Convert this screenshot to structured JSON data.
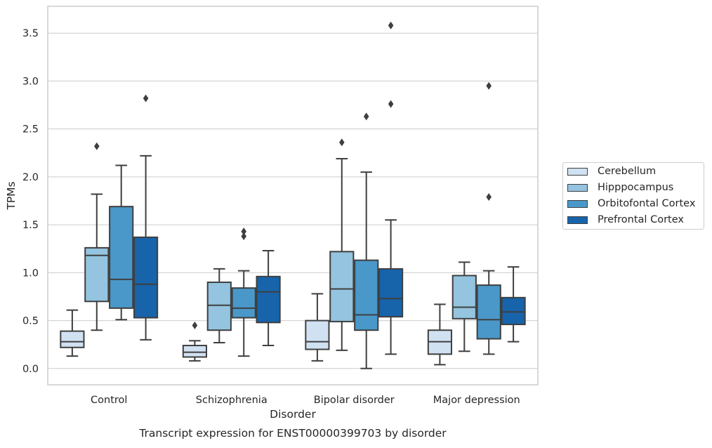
{
  "caption": "Transcript expression for ENST00000399703 by disorder",
  "chart_data": {
    "type": "box",
    "title": "",
    "xlabel": "Disorder",
    "ylabel": "TPMs",
    "ylim": [
      -0.17,
      3.78
    ],
    "yticks": [
      "0.0",
      "0.5",
      "1.0",
      "1.5",
      "2.0",
      "2.5",
      "3.0",
      "3.5"
    ],
    "ytick_values": [
      0.0,
      0.5,
      1.0,
      1.5,
      2.0,
      2.5,
      3.0,
      3.5
    ],
    "grid": "horizontal",
    "legend_position": "right",
    "categories": [
      "Control",
      "Schizophrenia",
      "Bipolar disorder",
      "Major depression"
    ],
    "series": [
      {
        "name": "Cerebellum",
        "color": "#d0e1f2",
        "boxes": [
          {
            "whislo": 0.13,
            "q1": 0.22,
            "med": 0.28,
            "q3": 0.39,
            "whishi": 0.61,
            "fliers": []
          },
          {
            "whislo": 0.08,
            "q1": 0.12,
            "med": 0.17,
            "q3": 0.24,
            "whishi": 0.29,
            "fliers": [
              0.45
            ]
          },
          {
            "whislo": 0.08,
            "q1": 0.2,
            "med": 0.28,
            "q3": 0.5,
            "whishi": 0.78,
            "fliers": []
          },
          {
            "whislo": 0.04,
            "q1": 0.15,
            "med": 0.28,
            "q3": 0.4,
            "whishi": 0.67,
            "fliers": []
          }
        ]
      },
      {
        "name": "Hipppocampus",
        "color": "#94c4df",
        "boxes": [
          {
            "whislo": 0.4,
            "q1": 0.7,
            "med": 1.18,
            "q3": 1.26,
            "whishi": 1.82,
            "fliers": [
              2.32
            ]
          },
          {
            "whislo": 0.27,
            "q1": 0.4,
            "med": 0.66,
            "q3": 0.9,
            "whishi": 1.04,
            "fliers": []
          },
          {
            "whislo": 0.19,
            "q1": 0.49,
            "med": 0.83,
            "q3": 1.22,
            "whishi": 2.19,
            "fliers": [
              2.36
            ]
          },
          {
            "whislo": 0.18,
            "q1": 0.52,
            "med": 0.64,
            "q3": 0.97,
            "whishi": 1.11,
            "fliers": []
          }
        ]
      },
      {
        "name": "Orbitofontal Cortex",
        "color": "#4a98c9",
        "boxes": [
          {
            "whislo": 0.51,
            "q1": 0.63,
            "med": 0.93,
            "q3": 1.69,
            "whishi": 2.12,
            "fliers": []
          },
          {
            "whislo": 0.13,
            "q1": 0.53,
            "med": 0.63,
            "q3": 0.84,
            "whishi": 1.02,
            "fliers": [
              1.38,
              1.43
            ]
          },
          {
            "whislo": 0.0,
            "q1": 0.4,
            "med": 0.56,
            "q3": 1.13,
            "whishi": 2.05,
            "fliers": [
              2.63
            ]
          },
          {
            "whislo": 0.15,
            "q1": 0.31,
            "med": 0.51,
            "q3": 0.87,
            "whishi": 1.02,
            "fliers": [
              1.79,
              2.95
            ]
          }
        ]
      },
      {
        "name": "Prefrontal Cortex",
        "color": "#1764ab",
        "boxes": [
          {
            "whislo": 0.3,
            "q1": 0.53,
            "med": 0.88,
            "q3": 1.37,
            "whishi": 2.22,
            "fliers": [
              2.82
            ]
          },
          {
            "whislo": 0.24,
            "q1": 0.48,
            "med": 0.8,
            "q3": 0.96,
            "whishi": 1.23,
            "fliers": []
          },
          {
            "whislo": 0.15,
            "q1": 0.54,
            "med": 0.73,
            "q3": 1.04,
            "whishi": 1.55,
            "fliers": [
              2.76,
              3.58
            ]
          },
          {
            "whislo": 0.28,
            "q1": 0.46,
            "med": 0.59,
            "q3": 0.74,
            "whishi": 1.06,
            "fliers": []
          }
        ]
      }
    ]
  }
}
